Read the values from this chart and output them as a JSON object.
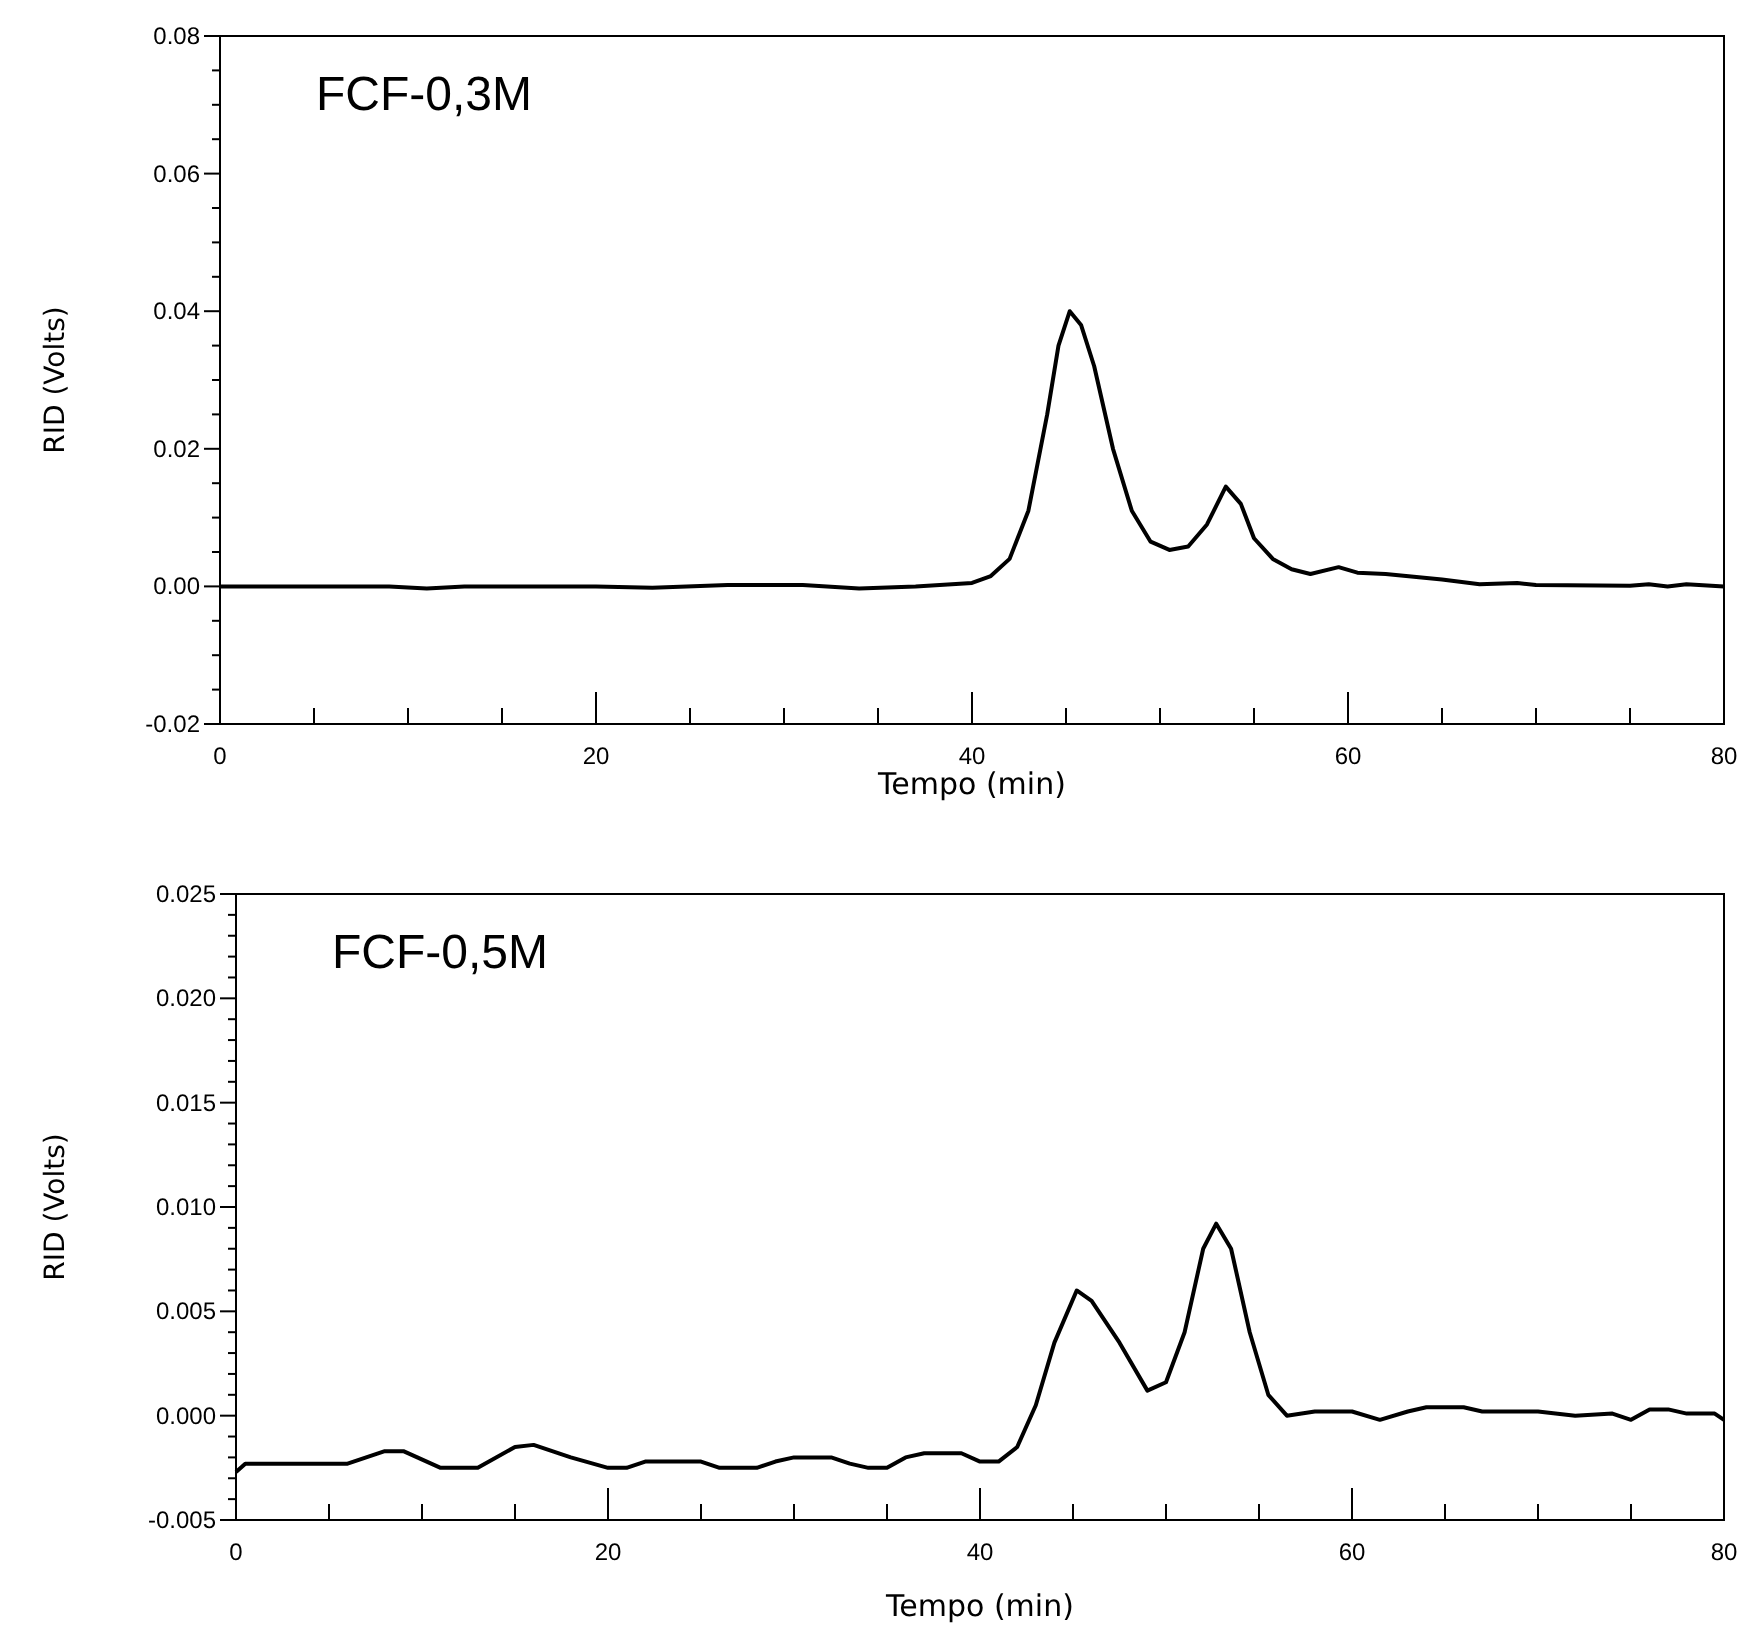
{
  "chart_data": [
    {
      "type": "line",
      "title": "FCF-0,3M",
      "xlabel": "Tempo (min)",
      "ylabel": "RID (Volts)",
      "xlim": [
        0,
        80
      ],
      "ylim": [
        -0.02,
        0.08
      ],
      "xticks": [
        0,
        {
          "value": 5,
          "label": null
        },
        {
          "value": 10,
          "label": null
        },
        {
          "value": 15,
          "label": null
        },
        20,
        {
          "value": 25,
          "label": null
        },
        {
          "value": 30,
          "label": null
        },
        {
          "value": 35,
          "label": null
        },
        40,
        {
          "value": 45,
          "label": null
        },
        {
          "value": 50,
          "label": null
        },
        {
          "value": 55,
          "label": null
        },
        60,
        {
          "value": 65,
          "label": null
        },
        {
          "value": 70,
          "label": null
        },
        {
          "value": 75,
          "label": null
        },
        80
      ],
      "yticks": [
        -0.02,
        {
          "value": -0.015,
          "label": null
        },
        {
          "value": -0.01,
          "label": null
        },
        {
          "value": -0.005,
          "label": null
        },
        {
          "value": 0,
          "label": "0.00"
        },
        {
          "value": 0.005,
          "label": null
        },
        {
          "value": 0.01,
          "label": null
        },
        {
          "value": 0.015,
          "label": null
        },
        0.02,
        {
          "value": 0.025,
          "label": null
        },
        {
          "value": 0.03,
          "label": null
        },
        {
          "value": 0.035,
          "label": null
        },
        0.04,
        {
          "value": 0.045,
          "label": null
        },
        {
          "value": 0.05,
          "label": null
        },
        {
          "value": 0.055,
          "label": null
        },
        0.06,
        {
          "value": 0.065,
          "label": null
        },
        {
          "value": 0.07,
          "label": null
        },
        {
          "value": 0.075,
          "label": null
        },
        0.08
      ],
      "series": [
        {
          "color": "#000000",
          "x": [
            0,
            5,
            9,
            11,
            13,
            20,
            23,
            27,
            31,
            34,
            37,
            40,
            41,
            42,
            43,
            44,
            44.6,
            45.2,
            45.8,
            46.5,
            47.5,
            48.5,
            49.5,
            50.5,
            51.5,
            52.5,
            53.5,
            54.3,
            55,
            56,
            57,
            58,
            59.5,
            60.5,
            62,
            65,
            67,
            69,
            70,
            75,
            76,
            77,
            78,
            80
          ],
          "values": [
            0,
            0,
            0,
            -0.0003,
            0,
            0,
            -0.0002,
            0.0002,
            0.0002,
            -0.0003,
            0,
            0.0005,
            0.0015,
            0.004,
            0.011,
            0.025,
            0.035,
            0.04,
            0.038,
            0.032,
            0.02,
            0.011,
            0.0065,
            0.0053,
            0.0058,
            0.009,
            0.0145,
            0.012,
            0.007,
            0.004,
            0.0025,
            0.0018,
            0.0028,
            0.002,
            0.0018,
            0.001,
            0.0003,
            0.0005,
            0.0002,
            0.0001,
            0.0003,
            0,
            0.0003,
            0
          ]
        }
      ]
    },
    {
      "type": "line",
      "title": "FCF-0,5M",
      "xlabel": "Tempo (min)",
      "ylabel": "RID (Volts)",
      "xlim": [
        0,
        80
      ],
      "ylim": [
        -0.005,
        0.025
      ],
      "xticks": [
        0,
        {
          "value": 5,
          "label": null
        },
        {
          "value": 10,
          "label": null
        },
        {
          "value": 15,
          "label": null
        },
        20,
        {
          "value": 25,
          "label": null
        },
        {
          "value": 30,
          "label": null
        },
        {
          "value": 35,
          "label": null
        },
        40,
        {
          "value": 45,
          "label": null
        },
        {
          "value": 50,
          "label": null
        },
        {
          "value": 55,
          "label": null
        },
        60,
        {
          "value": 65,
          "label": null
        },
        {
          "value": 70,
          "label": null
        },
        {
          "value": 75,
          "label": null
        },
        80
      ],
      "yticks": [
        -0.005,
        {
          "value": -0.004,
          "label": null
        },
        {
          "value": -0.003,
          "label": null
        },
        {
          "value": -0.002,
          "label": null
        },
        {
          "value": -0.001,
          "label": null
        },
        {
          "value": 0,
          "label": "0.000"
        },
        {
          "value": 0.001,
          "label": null
        },
        {
          "value": 0.002,
          "label": null
        },
        {
          "value": 0.003,
          "label": null
        },
        {
          "value": 0.004,
          "label": null
        },
        0.005,
        {
          "value": 0.006,
          "label": null
        },
        {
          "value": 0.007,
          "label": null
        },
        {
          "value": 0.008,
          "label": null
        },
        {
          "value": 0.009,
          "label": null
        },
        {
          "value": 0.01,
          "label": "0.010"
        },
        {
          "value": 0.011,
          "label": null
        },
        {
          "value": 0.012,
          "label": null
        },
        {
          "value": 0.013,
          "label": null
        },
        {
          "value": 0.014,
          "label": null
        },
        0.015,
        {
          "value": 0.016,
          "label": null
        },
        {
          "value": 0.017,
          "label": null
        },
        {
          "value": 0.018,
          "label": null
        },
        {
          "value": 0.019,
          "label": null
        },
        {
          "value": 0.02,
          "label": "0.020"
        },
        {
          "value": 0.021,
          "label": null
        },
        {
          "value": 0.022,
          "label": null
        },
        {
          "value": 0.023,
          "label": null
        },
        {
          "value": 0.024,
          "label": null
        },
        0.025
      ],
      "series": [
        {
          "color": "#000000",
          "x": [
            0,
            0.5,
            6,
            7,
            8,
            9,
            11,
            13,
            15,
            16,
            18,
            20,
            21,
            22,
            25,
            26,
            28,
            29,
            30,
            32,
            33,
            34,
            35,
            36,
            37,
            39,
            40,
            41,
            42,
            43,
            44,
            45.2,
            46,
            47.5,
            49,
            50,
            51,
            52,
            52.7,
            53.5,
            54.5,
            55.5,
            56.5,
            58,
            60,
            61.5,
            63,
            64,
            66,
            67,
            70,
            72,
            74,
            75,
            76,
            77,
            78,
            79.5,
            80
          ],
          "values": [
            -0.0027,
            -0.0023,
            -0.0023,
            -0.002,
            -0.0017,
            -0.0017,
            -0.0025,
            -0.0025,
            -0.0015,
            -0.0014,
            -0.002,
            -0.0025,
            -0.0025,
            -0.0022,
            -0.0022,
            -0.0025,
            -0.0025,
            -0.0022,
            -0.002,
            -0.002,
            -0.0023,
            -0.0025,
            -0.0025,
            -0.002,
            -0.0018,
            -0.0018,
            -0.0022,
            -0.0022,
            -0.0015,
            0.0005,
            0.0035,
            0.006,
            0.0055,
            0.0035,
            0.0012,
            0.0016,
            0.004,
            0.008,
            0.0092,
            0.008,
            0.004,
            0.001,
            0,
            0.0002,
            0.0002,
            -0.0002,
            0.0002,
            0.0004,
            0.0004,
            0.0002,
            0.0002,
            0,
            0.0001,
            -0.0002,
            0.0003,
            0.0003,
            0.0001,
            0.0001,
            -0.0002
          ]
        }
      ]
    }
  ]
}
